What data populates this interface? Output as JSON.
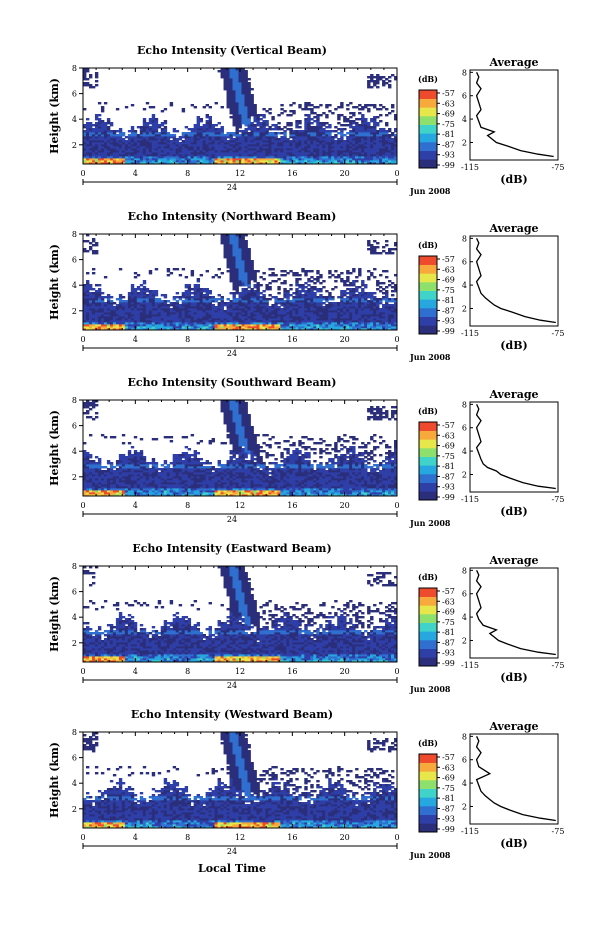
{
  "figure": {
    "x_axis_label": "Local Time",
    "date_label": "Jun 2008",
    "unit_label": "(dB)",
    "colorbar_ticks": [
      "-57",
      "-63",
      "-69",
      "-75",
      "-81",
      "-87",
      "-93",
      "-99"
    ],
    "average_title": "Average",
    "average_xticks": [
      "-115",
      "-75"
    ],
    "average_yticks": [
      "2",
      "4",
      "6",
      "8"
    ],
    "colors": {
      "background": "#ffffff",
      "colormap": [
        "#2b2e7a",
        "#2f3fa8",
        "#2f6fd0",
        "#27a7df",
        "#3fd3c9",
        "#8ee06d",
        "#e7e64a",
        "#f7a93b",
        "#ee4a2d"
      ]
    }
  },
  "chart_data": [
    {
      "type": "heatmap",
      "title": "Echo Intensity (Vertical Beam)",
      "ylabel": "Height (km)",
      "xlabel": "",
      "x_ticks": [
        "0",
        "4",
        "8",
        "12",
        "16",
        "20",
        "0"
      ],
      "day_label": "24",
      "y_ticks": [
        "2",
        "4",
        "6",
        "8"
      ],
      "x_range": [
        0,
        24
      ],
      "y_range": [
        0.5,
        8
      ],
      "color_range_db": [
        -99,
        -57
      ],
      "average_profile": {
        "x_db": [
          -77,
          -84,
          -92,
          -98,
          -103,
          -105,
          -107,
          -104,
          -110,
          -111,
          -112,
          -110,
          -111,
          -112,
          -110,
          -112,
          -111,
          -112
        ],
        "height_km": [
          0.8,
          1.0,
          1.3,
          1.7,
          2.0,
          2.3,
          2.6,
          2.9,
          3.3,
          3.8,
          4.3,
          4.8,
          5.4,
          6.0,
          6.6,
          7.1,
          7.6,
          8.0
        ]
      }
    },
    {
      "type": "heatmap",
      "title": "Echo Intensity (Northward Beam)",
      "ylabel": "Height (km)",
      "xlabel": "",
      "x_ticks": [
        "0",
        "4",
        "8",
        "12",
        "16",
        "20",
        "0"
      ],
      "day_label": "24",
      "y_ticks": [
        "2",
        "4",
        "6",
        "8"
      ],
      "x_range": [
        0,
        24
      ],
      "y_range": [
        0.5,
        8
      ],
      "color_range_db": [
        -99,
        -57
      ],
      "average_profile": {
        "x_db": [
          -76,
          -83,
          -90,
          -96,
          -101,
          -104,
          -106,
          -108,
          -110,
          -111,
          -112,
          -110,
          -111,
          -112,
          -110,
          -112,
          -111,
          -112
        ],
        "height_km": [
          0.8,
          1.0,
          1.3,
          1.7,
          2.0,
          2.3,
          2.6,
          2.9,
          3.3,
          3.8,
          4.3,
          4.8,
          5.4,
          6.0,
          6.6,
          7.1,
          7.6,
          8.0
        ]
      }
    },
    {
      "type": "heatmap",
      "title": "Echo Intensity (Southward Beam)",
      "ylabel": "Height (km)",
      "xlabel": "",
      "x_ticks": [
        "0",
        "4",
        "8",
        "12",
        "16",
        "20",
        "0"
      ],
      "day_label": "24",
      "y_ticks": [
        "2",
        "4",
        "6",
        "8"
      ],
      "x_range": [
        0,
        24
      ],
      "y_range": [
        0.5,
        8
      ],
      "color_range_db": [
        -99,
        -57
      ],
      "average_profile": {
        "x_db": [
          -76,
          -84,
          -91,
          -97,
          -101,
          -103,
          -107,
          -109,
          -110,
          -111,
          -112,
          -110,
          -111,
          -112,
          -110,
          -112,
          -111,
          -112
        ],
        "height_km": [
          0.8,
          1.0,
          1.3,
          1.7,
          2.0,
          2.3,
          2.6,
          2.9,
          3.3,
          3.8,
          4.3,
          4.8,
          5.4,
          6.0,
          6.6,
          7.1,
          7.6,
          8.0
        ]
      }
    },
    {
      "type": "heatmap",
      "title": "Echo Intensity (Eastward Beam)",
      "ylabel": "Height (km)",
      "xlabel": "",
      "x_ticks": [
        "0",
        "4",
        "8",
        "12",
        "16",
        "20",
        "0"
      ],
      "day_label": "24",
      "y_ticks": [
        "2",
        "4",
        "6",
        "8"
      ],
      "x_range": [
        0,
        24
      ],
      "y_range": [
        0.5,
        8
      ],
      "color_range_db": [
        -99,
        -57
      ],
      "average_profile": {
        "x_db": [
          -76,
          -84,
          -92,
          -98,
          -102,
          -104,
          -106,
          -103,
          -109,
          -111,
          -112,
          -110,
          -111,
          -112,
          -110,
          -112,
          -111,
          -112
        ],
        "height_km": [
          0.8,
          1.0,
          1.3,
          1.7,
          2.0,
          2.3,
          2.6,
          2.9,
          3.3,
          3.8,
          4.3,
          4.8,
          5.4,
          6.0,
          6.6,
          7.1,
          7.6,
          8.0
        ]
      }
    },
    {
      "type": "heatmap",
      "title": "Echo Intensity (Westward Beam)",
      "ylabel": "Height (km)",
      "xlabel": "Local Time",
      "x_ticks": [
        "0",
        "4",
        "8",
        "12",
        "16",
        "20",
        "0"
      ],
      "day_label": "24",
      "y_ticks": [
        "2",
        "4",
        "6",
        "8"
      ],
      "x_range": [
        0,
        24
      ],
      "y_range": [
        0.5,
        8
      ],
      "color_range_db": [
        -99,
        -57
      ],
      "average_profile": {
        "x_db": [
          -76,
          -83,
          -91,
          -97,
          -101,
          -104,
          -106,
          -108,
          -110,
          -111,
          -112,
          -106,
          -111,
          -112,
          -110,
          -112,
          -111,
          -112
        ],
        "height_km": [
          0.8,
          1.0,
          1.3,
          1.7,
          2.0,
          2.3,
          2.6,
          2.9,
          3.3,
          3.8,
          4.3,
          4.8,
          5.4,
          6.0,
          6.6,
          7.1,
          7.6,
          8.0
        ]
      }
    }
  ]
}
